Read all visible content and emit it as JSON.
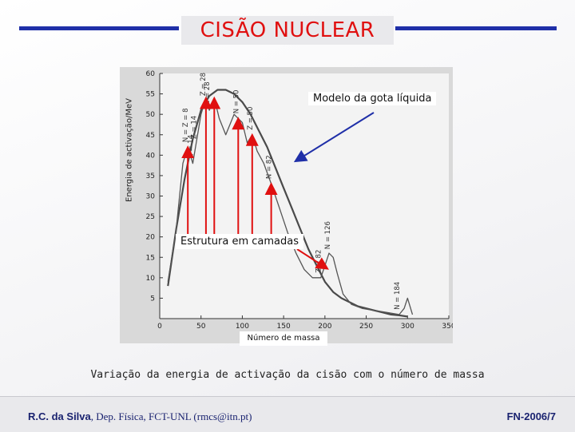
{
  "slide": {
    "title": "CISÃO NUCLEAR",
    "caption": "Variação da energia de activação da cisão com o número de massa",
    "footer": {
      "author": "R.C. da Silva",
      "affiliation": ", Dep. Física, FCT-UNL (rmcs@itn.pt)",
      "code": "FN-2006/7"
    },
    "colors": {
      "title": "#e01010",
      "rule": "#1f2fa8",
      "arrow_red": "#e01010",
      "arrow_blue": "#1f2fa8"
    }
  },
  "chart_data": {
    "type": "line",
    "ylabel": "Energia de activação/MeV",
    "xlabel": "Número de massa",
    "xlim": [
      0,
      350
    ],
    "ylim": [
      0,
      60
    ],
    "x_ticks": [
      "0",
      "50",
      "100",
      "150",
      "200",
      "250",
      "300",
      "350"
    ],
    "y_ticks": [
      "5",
      "10",
      "15",
      "20",
      "25",
      "30",
      "35",
      "40",
      "45",
      "50",
      "55",
      "60"
    ],
    "grid": false,
    "series": [
      {
        "name": "Modelo da gota líquida",
        "x": [
          10,
          20,
          30,
          40,
          50,
          60,
          70,
          80,
          90,
          100,
          110,
          120,
          130,
          140,
          150,
          160,
          170,
          180,
          190,
          200,
          210,
          220,
          230,
          240,
          250,
          260,
          270,
          280,
          290,
          300
        ],
        "y": [
          8,
          22,
          34,
          44,
          51,
          54.5,
          56,
          56,
          55,
          53,
          50,
          46,
          42,
          37,
          32,
          27,
          22,
          17,
          13,
          9,
          6.5,
          5,
          4,
          3,
          2.5,
          2,
          1.5,
          1,
          0.8,
          0.5
        ]
      },
      {
        "name": "Estrutura em camadas",
        "x": [
          10,
          20,
          28,
          34,
          40,
          50,
          56,
          60,
          66,
          72,
          80,
          90,
          100,
          106,
          112,
          118,
          126,
          135,
          145,
          155,
          165,
          175,
          185,
          195,
          200,
          205,
          210,
          215,
          222,
          232,
          245,
          260,
          275,
          290,
          296,
          300,
          306
        ],
        "y": [
          9,
          22,
          38,
          42,
          38,
          50,
          54,
          51,
          54,
          49,
          45,
          50,
          48,
          43,
          45,
          41,
          38,
          33,
          27,
          21,
          16,
          12,
          10,
          10,
          13,
          16,
          15,
          11,
          6,
          3.5,
          2.5,
          2,
          1.5,
          1,
          2.5,
          5,
          1
        ]
      }
    ],
    "annotations": [
      {
        "text": "N = Z = 8",
        "x": 34
      },
      {
        "text": "N = 14",
        "x": 40
      },
      {
        "text": "Z = 14",
        "x": 44
      },
      {
        "text": "Z = 28",
        "x": 55
      },
      {
        "text": "N = 28",
        "x": 60
      },
      {
        "text": "N = 50",
        "x": 95
      },
      {
        "text": "Z = 50",
        "x": 112
      },
      {
        "text": "N = 82",
        "x": 135
      },
      {
        "text": "Z = 82",
        "x": 195
      },
      {
        "text": "N = 126",
        "x": 206
      },
      {
        "text": "N = 184",
        "x": 290
      }
    ],
    "labels": {
      "liquid_drop": "Modelo da gota líquida",
      "shell_structure": "Estrutura em camadas"
    }
  }
}
